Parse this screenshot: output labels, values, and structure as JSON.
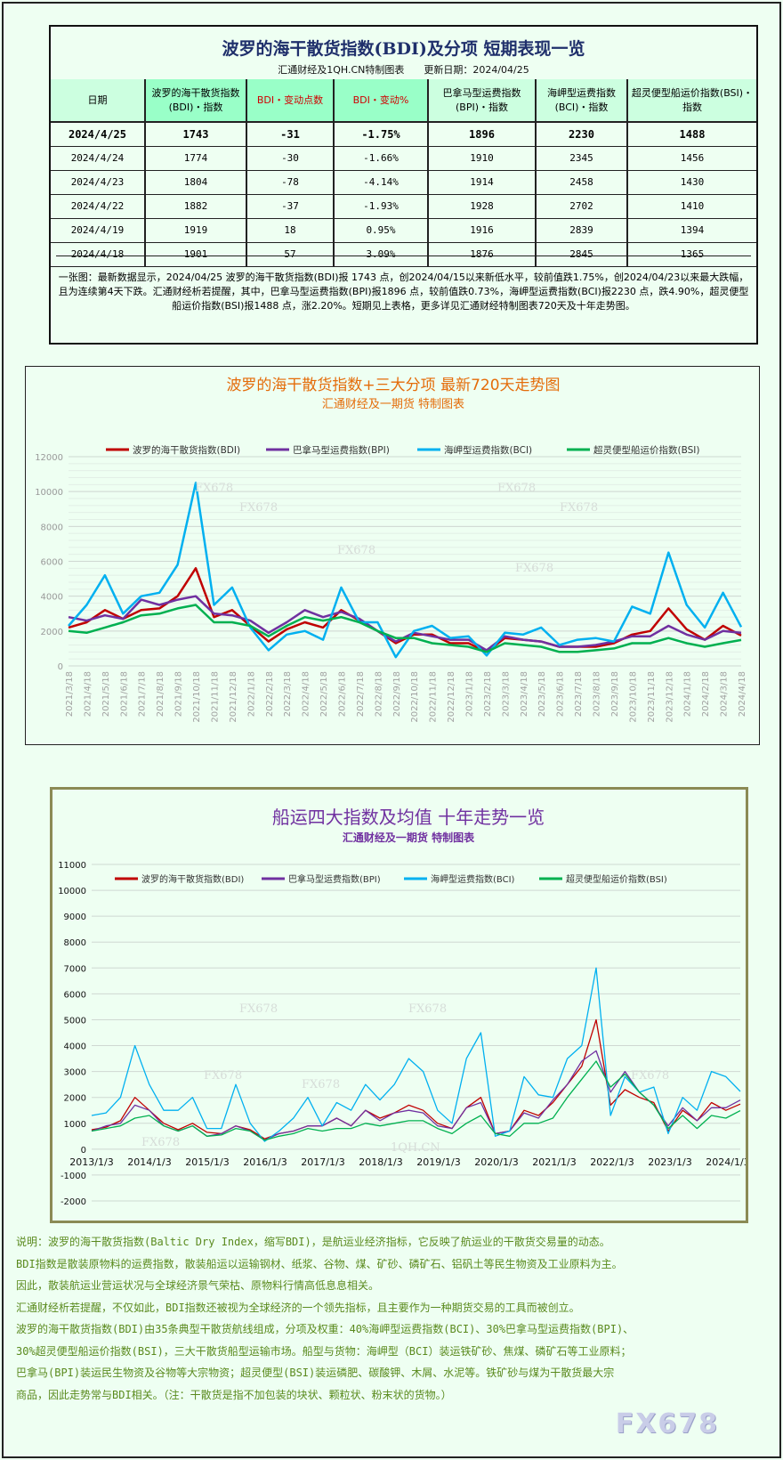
{
  "table": {
    "title": "波罗的海干散货指数(BDI)及分项 短期表现一览",
    "subtitle": "汇通财经及1QH.CN特制图表　　更新日期：2024/04/25",
    "headers": [
      "日期",
      "波罗的海干散货指数(BDI)・指数",
      "BDI・变动点数",
      "BDI・变动%",
      "巴拿马型运费指数(BPI)・指数",
      "海岬型运费指数(BCI)・指数",
      "超灵便型船运价指数(BSI)・指数"
    ],
    "rows": [
      [
        "2024/4/25",
        "1743",
        "-31",
        "-1.75%",
        "1896",
        "2230",
        "1488"
      ],
      [
        "2024/4/24",
        "1774",
        "-30",
        "-1.66%",
        "1910",
        "2345",
        "1456"
      ],
      [
        "2024/4/23",
        "1804",
        "-78",
        "-4.14%",
        "1914",
        "2458",
        "1430"
      ],
      [
        "2024/4/22",
        "1882",
        "-37",
        "-1.93%",
        "1928",
        "2702",
        "1410"
      ],
      [
        "2024/4/19",
        "1919",
        "18",
        "0.95%",
        "1916",
        "2839",
        "1394"
      ],
      [
        "2024/4/18",
        "1901",
        "57",
        "3.09%",
        "1876",
        "2845",
        "1365"
      ]
    ],
    "summary": "一张图：最新数据显示，2024/04/25 波罗的海干散货指数(BDI)报 1743 点，创2024/04/15以来新低水平，较前值跌1.75%，创2024/04/23以来最大跌幅，且为连续第4天下跌。汇通财经析若提醒，其中，巴拿马型运费指数(BPI)报1896 点，较前值跌0.73%，海岬型运费指数(BCI)报2230 点，跌4.90%，超灵便型船运价指数(BSI)报1488 点，涨2.20%。短期见上表格，更多详见汇通财经特制图表720天及十年走势图。"
  },
  "chart_data": [
    {
      "type": "line",
      "title": "波罗的海干散货指数+三大分项  最新720天走势图",
      "subtitle": "汇通财经及一期货  特制图表",
      "ylim": [
        0,
        12000
      ],
      "yticks": [
        0,
        2000,
        4000,
        6000,
        8000,
        10000,
        12000
      ],
      "grid": true,
      "legend": "top",
      "x": [
        "2021/3/18",
        "2021/4/18",
        "2021/5/18",
        "2021/6/18",
        "2021/7/18",
        "2021/8/18",
        "2021/9/18",
        "2021/10/18",
        "2021/11/18",
        "2021/12/18",
        "2022/1/18",
        "2022/2/18",
        "2022/3/18",
        "2022/4/18",
        "2022/5/18",
        "2022/6/18",
        "2022/7/18",
        "2022/8/18",
        "2022/9/18",
        "2022/10/18",
        "2022/11/18",
        "2022/12/18",
        "2023/1/18",
        "2023/2/18",
        "2023/3/18",
        "2023/4/18",
        "2023/5/18",
        "2023/6/18",
        "2023/7/18",
        "2023/8/18",
        "2023/9/18",
        "2023/10/18",
        "2023/11/18",
        "2023/12/18",
        "2024/1/18",
        "2024/2/18",
        "2024/3/18",
        "2024/4/18"
      ],
      "series": [
        {
          "name": "波罗的海干散货指数(BDI)",
          "color": "#c00000",
          "values": [
            2200,
            2500,
            3200,
            2700,
            3200,
            3300,
            4000,
            5600,
            2800,
            3200,
            2300,
            1400,
            2100,
            2500,
            2200,
            3200,
            2600,
            2000,
            1300,
            1800,
            1800,
            1300,
            1300,
            800,
            1600,
            1500,
            1400,
            1100,
            1100,
            1100,
            1300,
            1800,
            2000,
            3300,
            2100,
            1500,
            2300,
            1743
          ]
        },
        {
          "name": "巴拿马型运费指数(BPI)",
          "color": "#7030a0",
          "values": [
            2800,
            2600,
            2900,
            2700,
            3800,
            3500,
            3800,
            4000,
            3000,
            2900,
            2600,
            1900,
            2500,
            3200,
            2800,
            3100,
            2700,
            2000,
            1400,
            1900,
            1700,
            1500,
            1500,
            900,
            1700,
            1500,
            1400,
            1100,
            1100,
            1200,
            1400,
            1700,
            1700,
            2300,
            1800,
            1500,
            2000,
            1896
          ]
        },
        {
          "name": "海岬型运费指数(BCI)",
          "color": "#00b0f0",
          "values": [
            2300,
            3500,
            5200,
            3000,
            4000,
            4200,
            5800,
            10500,
            3500,
            4500,
            2200,
            900,
            1800,
            2000,
            1500,
            4500,
            2500,
            2500,
            500,
            2000,
            2300,
            1600,
            1700,
            600,
            1900,
            1800,
            2200,
            1200,
            1500,
            1600,
            1400,
            3400,
            3000,
            6500,
            3500,
            2200,
            4200,
            2230
          ]
        },
        {
          "name": "超灵便型船运价指数(BSI)",
          "color": "#00b050",
          "values": [
            2000,
            1900,
            2200,
            2500,
            2900,
            3000,
            3300,
            3500,
            2500,
            2500,
            2300,
            1700,
            2300,
            2800,
            2600,
            2800,
            2500,
            2000,
            1600,
            1600,
            1300,
            1200,
            1100,
            800,
            1300,
            1200,
            1100,
            800,
            800,
            900,
            1000,
            1300,
            1300,
            1600,
            1300,
            1100,
            1300,
            1488
          ]
        }
      ],
      "watermarks": [
        "FX678"
      ]
    },
    {
      "type": "line",
      "title": "船运四大指数及均值 十年走势一览",
      "subtitle": "汇通财经及一期货 特制图表",
      "ylim": [
        -2000,
        11000
      ],
      "yticks": [
        -2000,
        -1000,
        0,
        1000,
        2000,
        3000,
        4000,
        5000,
        6000,
        7000,
        8000,
        9000,
        10000,
        11000
      ],
      "grid": true,
      "legend": "top",
      "xticks": [
        "2013/1/3",
        "2014/1/3",
        "2015/1/3",
        "2016/1/3",
        "2017/1/3",
        "2018/1/3",
        "2019/1/3",
        "2020/1/3",
        "2021/1/3",
        "2022/1/3",
        "2023/1/3",
        "2024/1/3"
      ],
      "x": [
        "2013/1",
        "2013/4",
        "2013/7",
        "2013/10",
        "2014/1",
        "2014/4",
        "2014/7",
        "2014/10",
        "2015/1",
        "2015/4",
        "2015/7",
        "2015/10",
        "2016/1",
        "2016/4",
        "2016/7",
        "2016/10",
        "2017/1",
        "2017/4",
        "2017/7",
        "2017/10",
        "2018/1",
        "2018/4",
        "2018/7",
        "2018/10",
        "2019/1",
        "2019/4",
        "2019/7",
        "2019/10",
        "2020/1",
        "2020/4",
        "2020/7",
        "2020/10",
        "2021/1",
        "2021/4",
        "2021/7",
        "2021/10",
        "2022/1",
        "2022/4",
        "2022/7",
        "2022/10",
        "2023/1",
        "2023/4",
        "2023/7",
        "2023/10",
        "2024/1",
        "2024/4"
      ],
      "series": [
        {
          "name": "波罗的海干散货指数(BDI)",
          "color": "#c00000",
          "values": [
            750,
            850,
            1100,
            2000,
            1500,
            1000,
            750,
            1000,
            650,
            600,
            900,
            750,
            400,
            600,
            700,
            900,
            900,
            1200,
            900,
            1500,
            1200,
            1400,
            1700,
            1500,
            1000,
            800,
            1600,
            2000,
            600,
            700,
            1500,
            1300,
            1800,
            2500,
            3200,
            5000,
            1700,
            2300,
            2000,
            1800,
            700,
            1500,
            1100,
            1800,
            1500,
            1743
          ]
        },
        {
          "name": "巴拿马型运费指数(BPI)",
          "color": "#7030a0",
          "values": [
            700,
            900,
            1000,
            1700,
            1500,
            900,
            700,
            900,
            500,
            600,
            900,
            700,
            350,
            600,
            700,
            900,
            900,
            1200,
            900,
            1500,
            1100,
            1400,
            1500,
            1400,
            900,
            800,
            1600,
            1800,
            600,
            700,
            1400,
            1200,
            1900,
            2500,
            3400,
            3800,
            2200,
            3000,
            2200,
            1700,
            900,
            1600,
            1100,
            1600,
            1600,
            1896
          ]
        },
        {
          "name": "海岬型运费指数(BCI)",
          "color": "#00b0f0",
          "values": [
            1300,
            1400,
            2000,
            4000,
            2500,
            1500,
            1500,
            2000,
            800,
            800,
            2500,
            1000,
            300,
            700,
            1200,
            2000,
            900,
            1800,
            1500,
            2500,
            1900,
            2500,
            3500,
            3000,
            1500,
            1000,
            3500,
            4500,
            500,
            700,
            2800,
            2100,
            2000,
            3500,
            4000,
            7000,
            1300,
            2800,
            2200,
            2400,
            600,
            2000,
            1500,
            3000,
            2800,
            2230
          ]
        },
        {
          "name": "超灵便型船运价指数(BSI)",
          "color": "#00b050",
          "values": [
            700,
            800,
            900,
            1200,
            1300,
            900,
            700,
            900,
            500,
            550,
            800,
            700,
            350,
            500,
            600,
            800,
            700,
            800,
            800,
            1000,
            900,
            1000,
            1100,
            1100,
            800,
            600,
            1000,
            1300,
            600,
            500,
            1000,
            1000,
            1200,
            2000,
            2700,
            3400,
            2400,
            2900,
            2200,
            1700,
            800,
            1300,
            800,
            1300,
            1200,
            1488
          ]
        }
      ],
      "watermarks": [
        "FX678",
        "1QH.CN"
      ]
    }
  ],
  "notes": [
    "说明：波罗的海干散货指数(Baltic Dry Index，缩写BDI)，是航运业经济指标，它反映了航运业的干散货交易量的动态。",
    "BDI指数是散装原物料的运费指数，散装船运以运输钢材、纸浆、谷物、煤、矿砂、磷矿石、铝矾土等民生物资及工业原料为主。",
    "因此，散装航运业营运状况与全球经济景气荣枯、原物料行情高低息息相关。",
    "汇通财经析若提醒，不仅如此，BDI指数还被视为全球经济的一个领先指标，且主要作为一种期货交易的工具而被创立。",
    "波罗的海干散货指数(BDI)由35条典型干散货航线组成，分项及权重：40%海岬型运费指数(BCI)、30%巴拿马型运费指数(BPI)、",
    "30%超灵便型船运价指数(BSI)，三大干散货船型运输市场。船型与货物：海岬型（BCI）装运铁矿砂、焦煤、磷矿石等工业原料；",
    "巴拿马(BPI)装运民生物资及谷物等大宗物资；超灵便型(BSI)装运磷肥、碳酸钾、木屑、水泥等。铁矿砂与煤为干散货最大宗",
    "商品，因此走势常与BDI相关。（注：干散货是指不加包装的块状、颗粒状、粉末状的货物。）"
  ],
  "watermark": "FX678"
}
